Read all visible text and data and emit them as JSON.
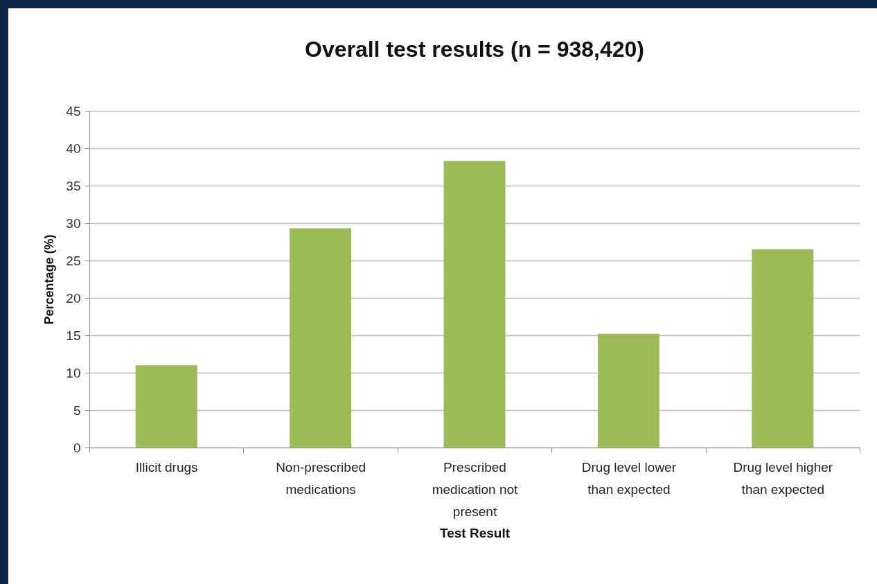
{
  "chart_data": {
    "type": "bar",
    "title": "Overall test results (n = 938,420)",
    "xlabel": "Test Result",
    "ylabel": "Percentage (%)",
    "categories": [
      "Illicit drugs",
      "Non-prescribed medications",
      "Prescribed medication not present",
      "Drug level lower than expected",
      "Drug level higher than expected"
    ],
    "values": [
      11.0,
      29.3,
      38.3,
      15.2,
      26.5
    ],
    "color": "#9bbb59",
    "ylim": [
      0,
      45
    ],
    "yticks": [
      0,
      5,
      10,
      15,
      20,
      25,
      30,
      35,
      40,
      45
    ],
    "grid": "y"
  }
}
